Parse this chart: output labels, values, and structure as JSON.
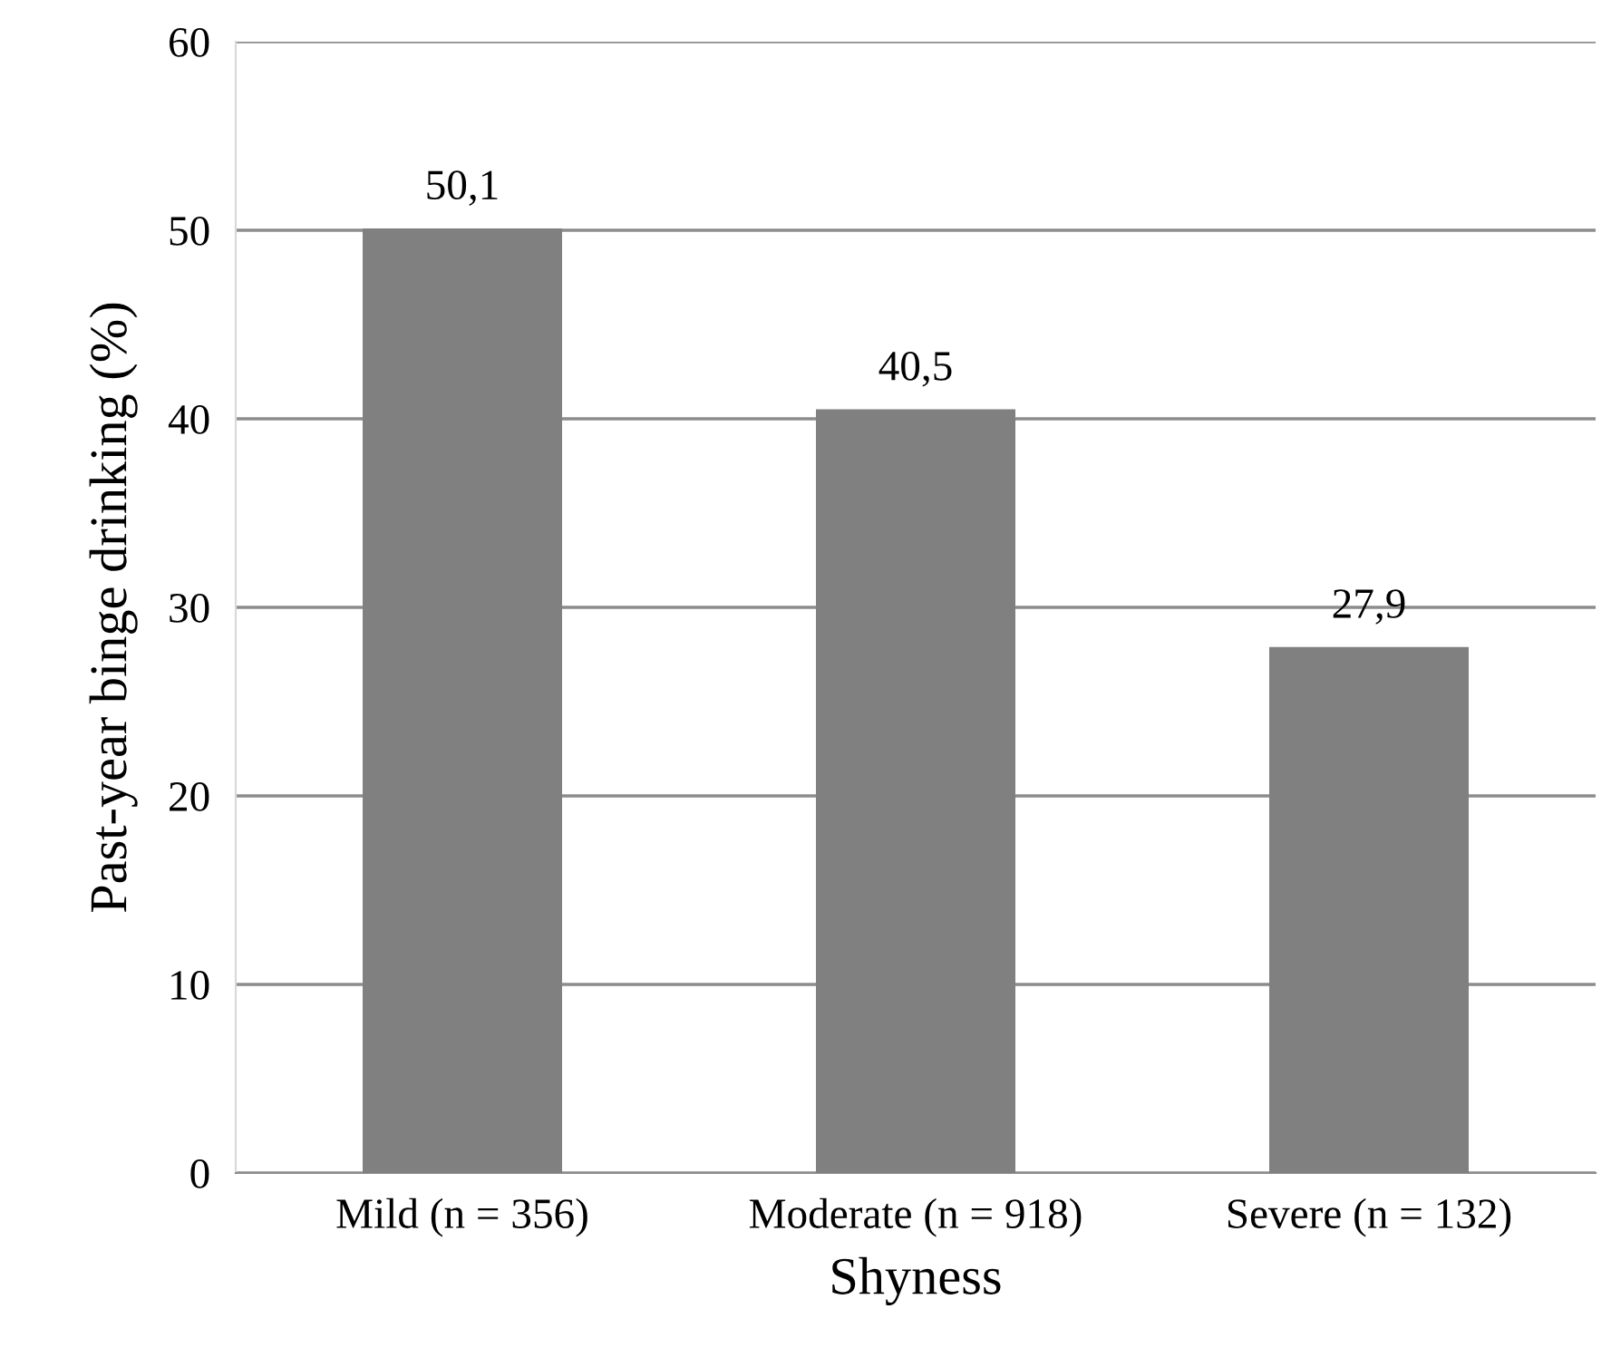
{
  "chart_data": {
    "type": "bar",
    "xlabel": "Shyness",
    "ylabel": "Past-year binge drinking (%)",
    "categories": [
      "Mild (n = 356)",
      "Moderate (n = 918)",
      "Severe (n = 132)"
    ],
    "values": [
      50.1,
      40.5,
      27.9
    ],
    "color": "#808080",
    "value_labels": [
      "50,1",
      "40,5",
      "27,9"
    ],
    "ylim": [
      0,
      60
    ],
    "yticks": [
      0,
      10,
      20,
      30,
      40,
      50,
      60
    ],
    "grid": "y",
    "legend": false
  }
}
